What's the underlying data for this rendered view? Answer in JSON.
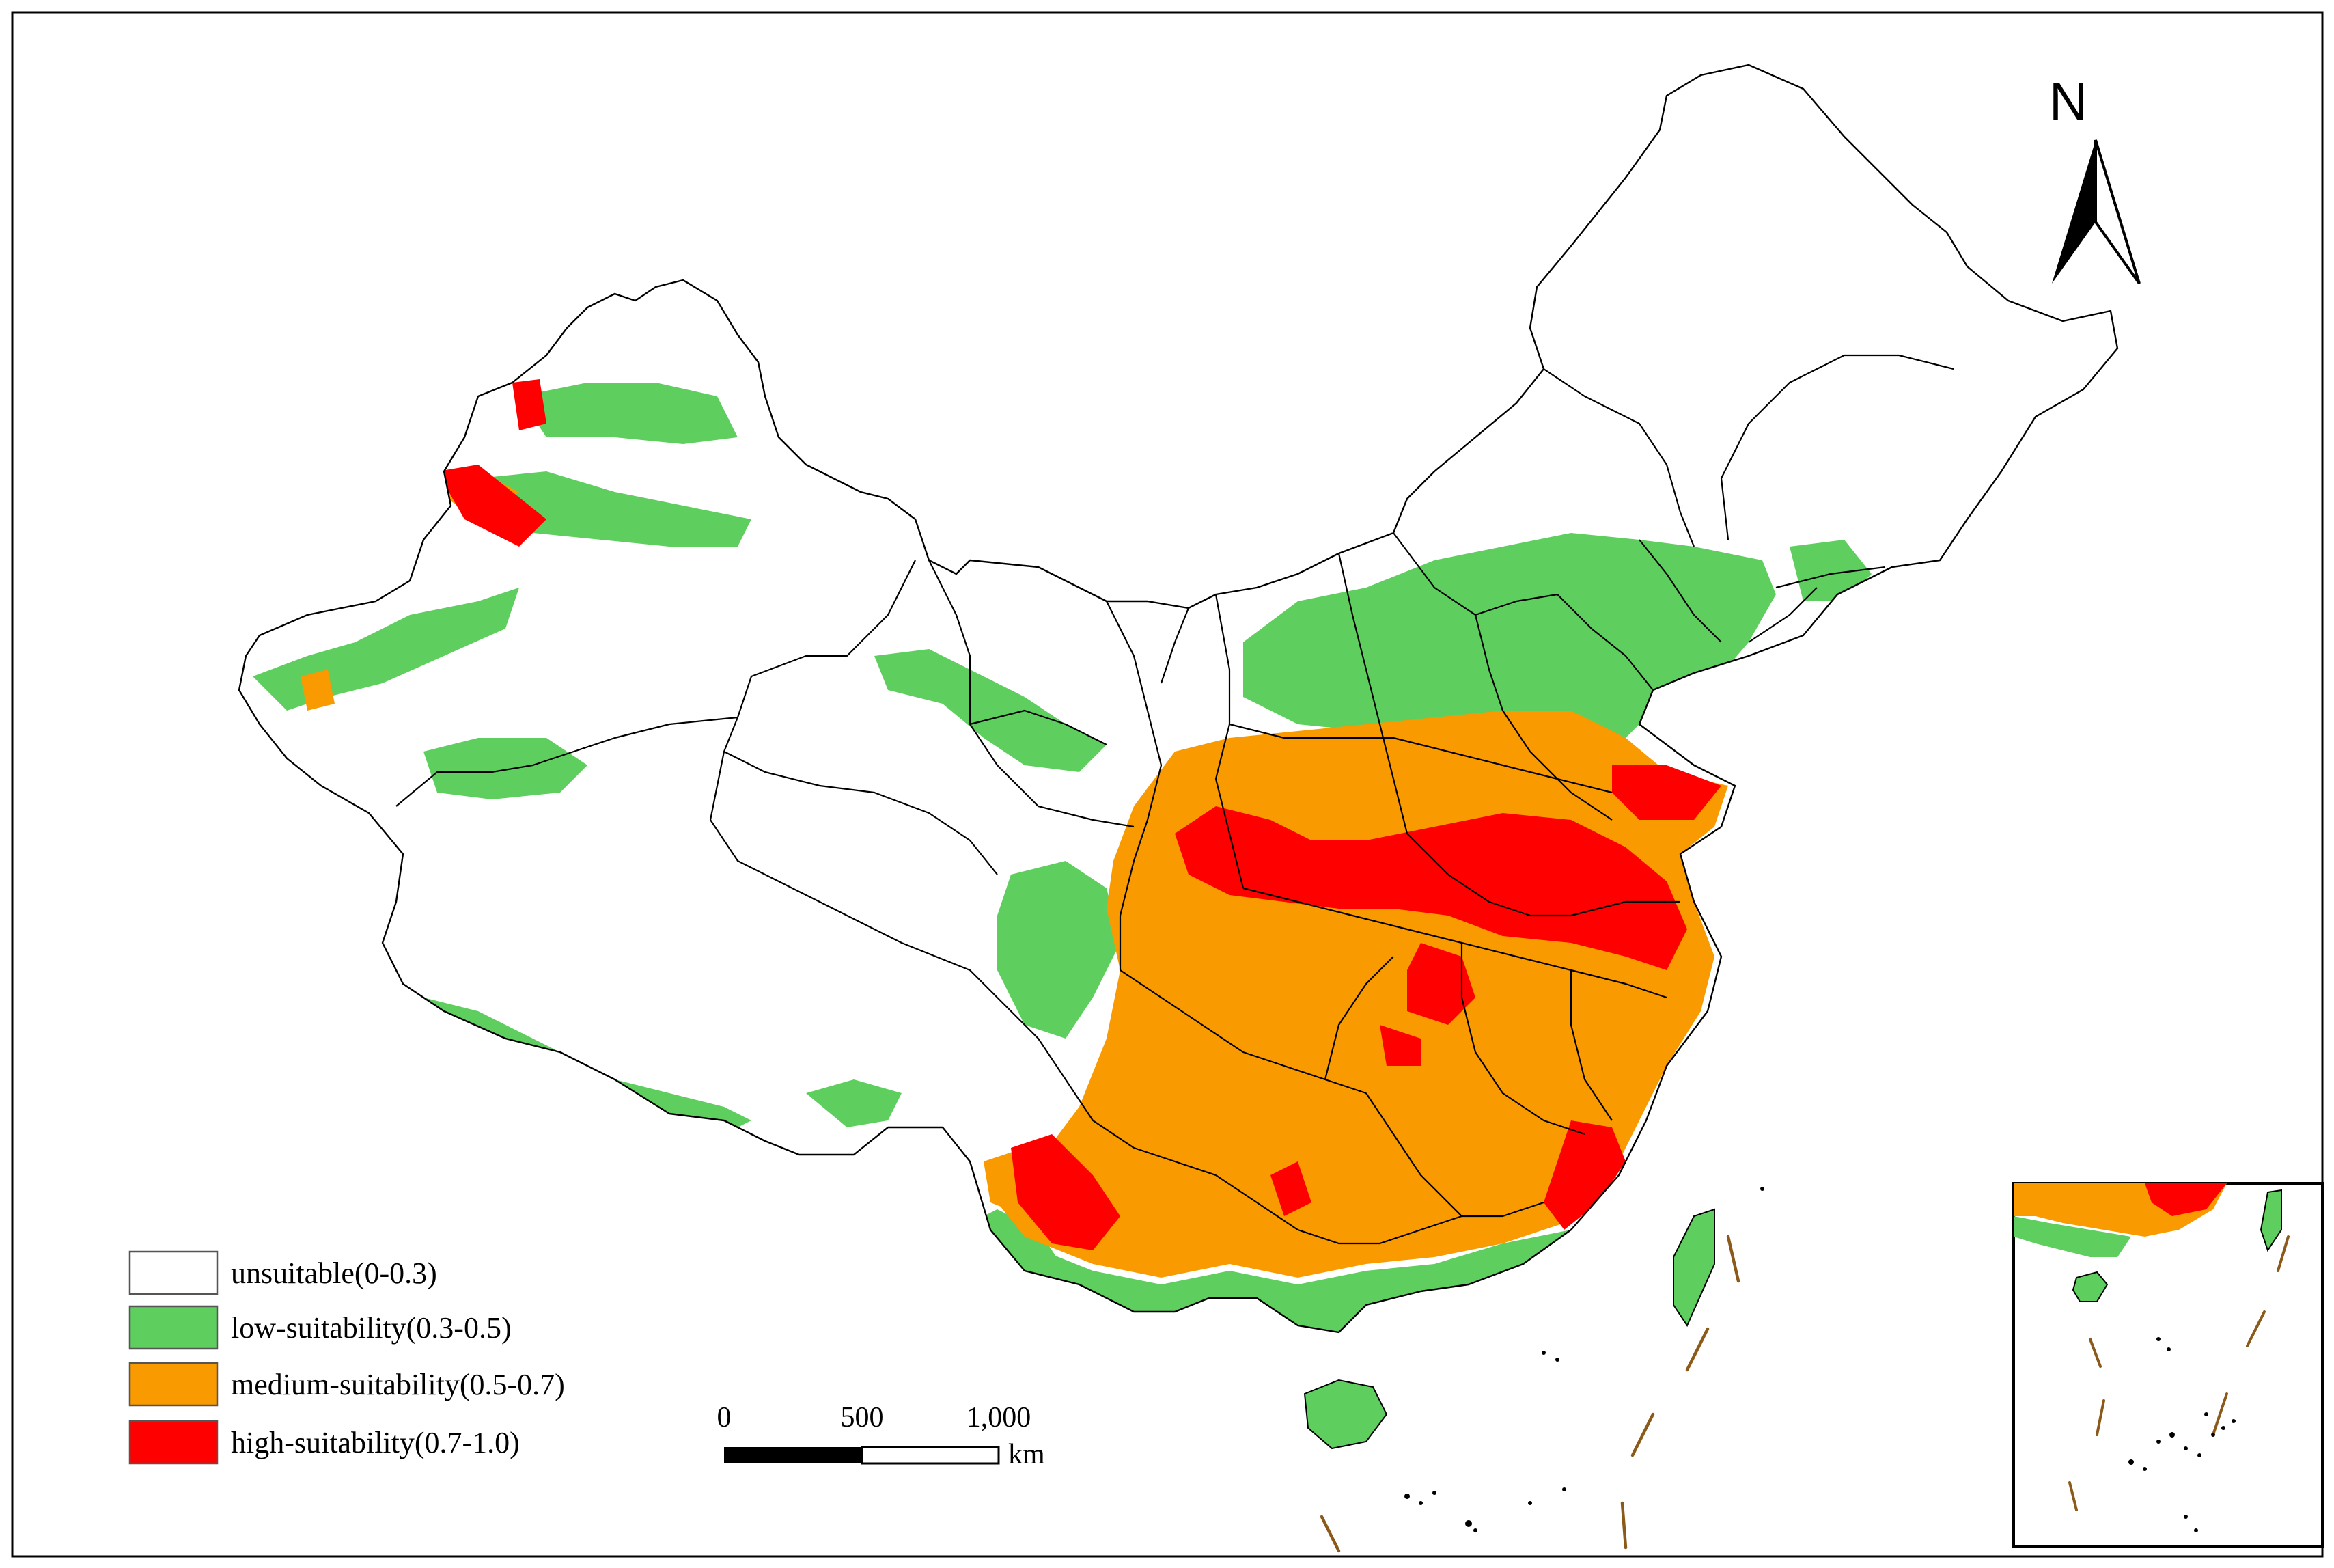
{
  "map": {
    "north_arrow": {
      "label": "N"
    },
    "legend": {
      "items": [
        {
          "id": "unsuitable",
          "label": "unsuitable(0-0.3)",
          "color": "#ffffff"
        },
        {
          "id": "low",
          "label": "low-suitability(0.3-0.5)",
          "color": "#5ece5e"
        },
        {
          "id": "medium",
          "label": "medium-suitability(0.5-0.7)",
          "color": "#f99a00"
        },
        {
          "id": "high",
          "label": "high-suitability(0.7-1.0)",
          "color": "#ff0000"
        }
      ]
    },
    "scale_bar": {
      "ticks": [
        "0",
        "500",
        "1,000"
      ],
      "unit": "km"
    },
    "colors": {
      "unsuitable": "#ffffff",
      "low": "#5ece5e",
      "medium": "#f99a00",
      "high": "#ff0000",
      "boundary": "#000000",
      "maritime_dash": "#8b5a1a"
    }
  }
}
